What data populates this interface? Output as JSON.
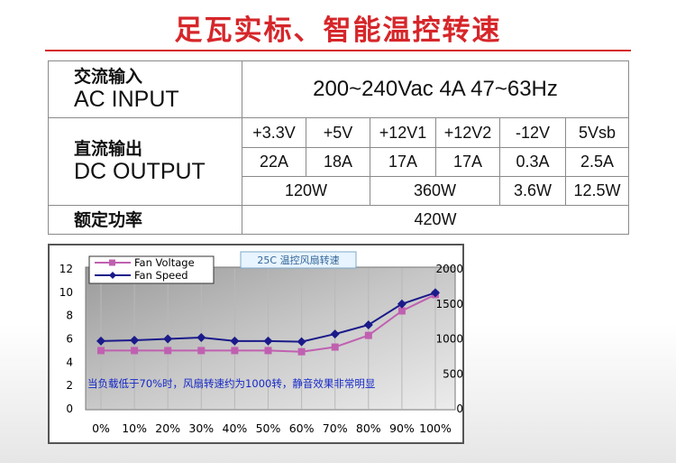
{
  "title": "足瓦实标、智能温控转速",
  "spec": {
    "ac_label_cn": "交流输入",
    "ac_label_en": "AC INPUT",
    "ac_value": "200~240Vac 4A  47~63Hz",
    "dc_label_cn": "直流输出",
    "dc_label_en": "DC OUTPUT",
    "rails": [
      "+3.3V",
      "+5V",
      "+12V1",
      "+12V2",
      "-12V",
      "5Vsb"
    ],
    "currents": [
      "22A",
      "18A",
      "17A",
      "17A",
      "0.3A",
      "2.5A"
    ],
    "powers": [
      "120W",
      "360W",
      "3.6W",
      "12.5W"
    ],
    "rated_label": "额定功率",
    "rated_value": "420W"
  },
  "chart_data": {
    "type": "line",
    "categories": [
      "0%",
      "10%",
      "20%",
      "30%",
      "40%",
      "50%",
      "60%",
      "70%",
      "80%",
      "90%",
      "100%"
    ],
    "series": [
      {
        "name": "Fan Voltage",
        "axis": "left",
        "color": "#c060b0",
        "marker": "square",
        "values": [
          5.0,
          5.0,
          5.0,
          5.0,
          5.0,
          5.0,
          4.9,
          5.3,
          6.3,
          8.4,
          9.8
        ]
      },
      {
        "name": "Fan Speed",
        "axis": "right",
        "color": "#1a1a8a",
        "marker": "diamond",
        "values": [
          970,
          980,
          1000,
          1020,
          970,
          970,
          960,
          1070,
          1200,
          1500,
          1660
        ]
      }
    ],
    "y_left": {
      "min": 0,
      "max": 12,
      "ticks": [
        "0",
        "2",
        "4",
        "6",
        "8",
        "10",
        "12"
      ]
    },
    "y_right": {
      "min": 0,
      "max": 2000,
      "ticks": [
        "0",
        "500",
        "1000",
        "1500",
        "2000"
      ]
    },
    "legend": "top-left",
    "header_label": "25C 温控风扇转速",
    "annotation": "当负载低于70%时，风扇转速约为1000转，静音效果非常明显"
  }
}
